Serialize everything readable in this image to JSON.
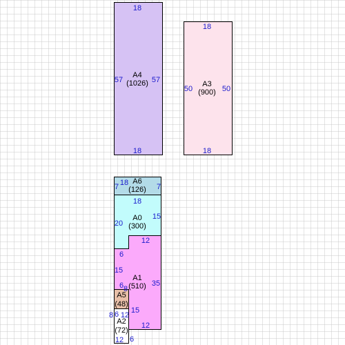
{
  "regions": {
    "a4": {
      "name": "A4",
      "area": "(1026)",
      "color": "#d6c2f4",
      "dims": {
        "top": "18",
        "left": "57",
        "right": "57",
        "bottom": "18"
      }
    },
    "a3": {
      "name": "A3",
      "area": "(900)",
      "color": "#fde3ec",
      "dims": {
        "top": "18",
        "left": "50",
        "right": "50",
        "bottom": "18"
      }
    },
    "a6": {
      "name": "A6",
      "area": "(126)",
      "color": "#b3dbe8",
      "dims": {
        "top": "18",
        "left": "7",
        "right": "7"
      }
    },
    "a0": {
      "name": "A0",
      "area": "(300)",
      "color": "#c2fcfc",
      "dims": {
        "top": "18",
        "left": "20",
        "right": "15",
        "notch_vertical": "6"
      }
    },
    "a1": {
      "name": "A1",
      "area": "(510)",
      "color": "#fbaafb",
      "dims": {
        "top": "12",
        "notch_horizontal": "6",
        "left": "15",
        "right": "35",
        "lower_notch_horizontal": "6",
        "lower_notch_vertical": "15",
        "bottom": "12"
      }
    },
    "a5": {
      "name": "A5",
      "area": "(48)",
      "color": "#e8bfa8",
      "dims": {
        "top": "8",
        "left": "8"
      }
    },
    "a2": {
      "name": "A2",
      "area": "(72)",
      "color": "#ffffff",
      "dims": {
        "top": "12",
        "left": "6",
        "right": "6",
        "bottom": "12"
      }
    }
  }
}
